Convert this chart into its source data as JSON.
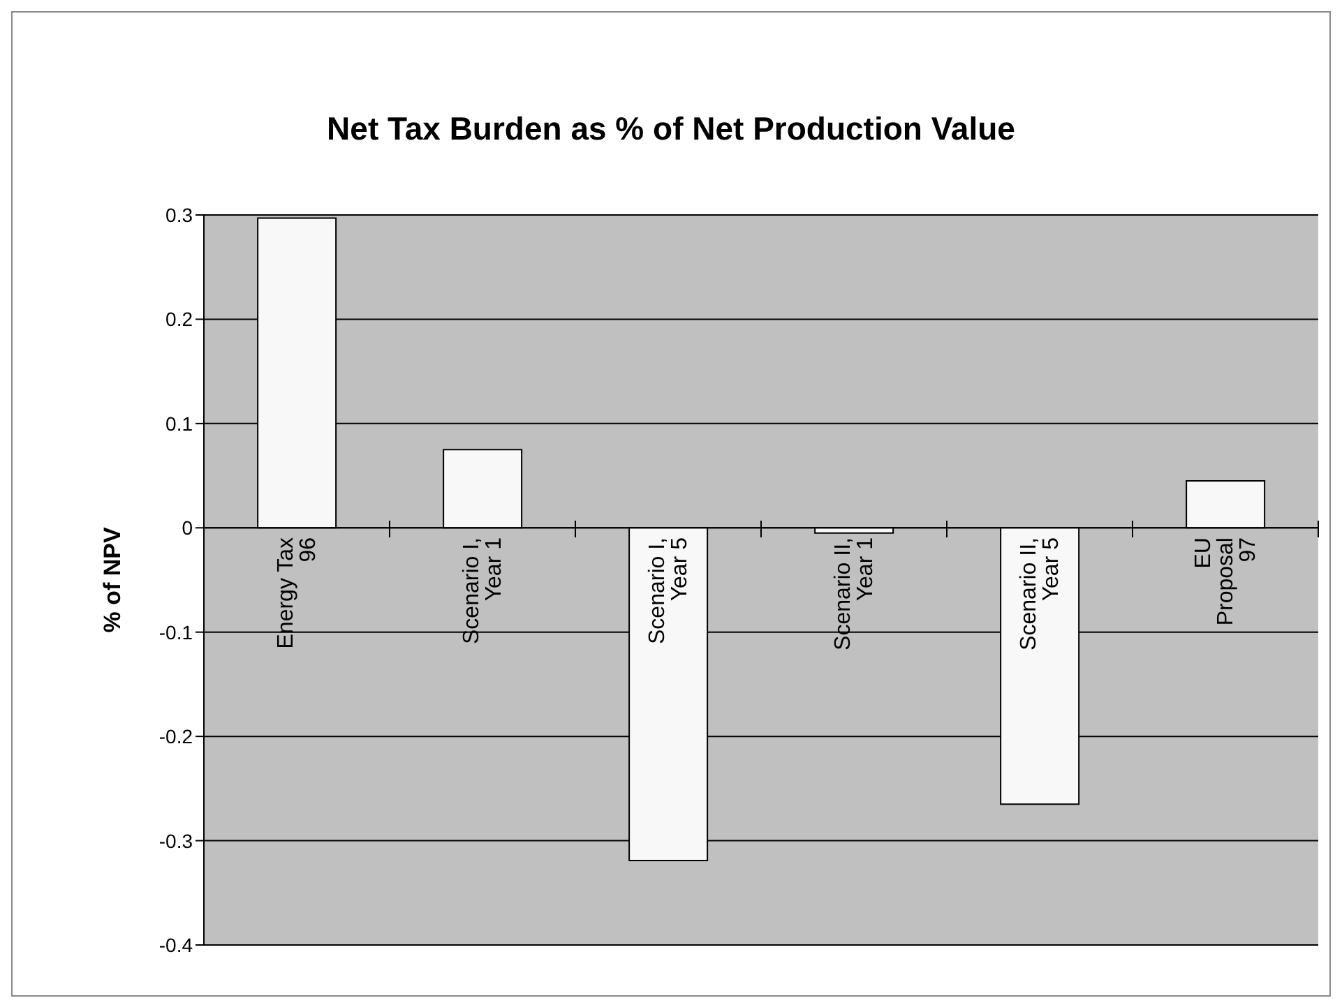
{
  "chart_data": {
    "type": "bar",
    "title": "Net Tax Burden as % of Net Production Value",
    "ylabel": "% of NPV",
    "categories": [
      "Energy Tax\n96",
      "Scenario I,\nYear 1",
      "Scenario I,\nYear 5",
      "Scenario II,\nYear 1",
      "Scenario II,\nYear 5",
      "EU\nProposal\n97"
    ],
    "values": [
      0.297,
      0.075,
      -0.319,
      -0.005,
      -0.265,
      0.045
    ],
    "color": "#f8f8f8",
    "ylim": [
      -0.4,
      0.3
    ],
    "yticks": [
      -0.4,
      -0.3,
      -0.2,
      -0.1,
      0,
      0.1,
      0.2,
      0.3
    ],
    "grid": "y"
  }
}
